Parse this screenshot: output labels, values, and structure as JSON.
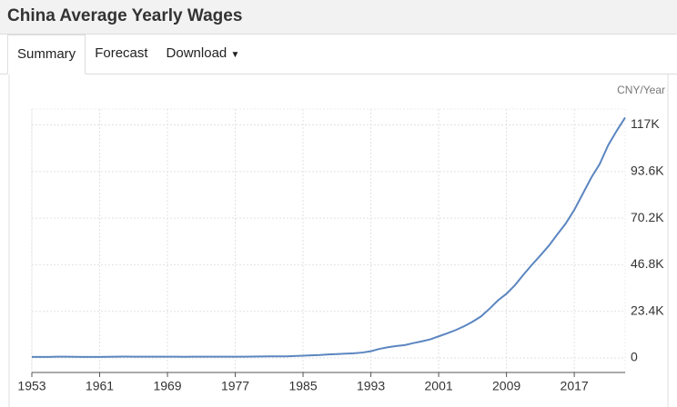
{
  "header": {
    "title": "China Average Yearly Wages"
  },
  "tabs": [
    "Summary",
    "Forecast",
    "Download"
  ],
  "chart_data": {
    "type": "line",
    "y_unit": "CNY/Year",
    "x": [
      1953,
      1954,
      1955,
      1956,
      1957,
      1958,
      1959,
      1960,
      1961,
      1962,
      1963,
      1964,
      1965,
      1966,
      1967,
      1968,
      1969,
      1970,
      1971,
      1972,
      1973,
      1974,
      1975,
      1976,
      1977,
      1978,
      1979,
      1980,
      1981,
      1982,
      1983,
      1984,
      1985,
      1986,
      1987,
      1988,
      1989,
      1990,
      1991,
      1992,
      1993,
      1994,
      1995,
      1996,
      1997,
      1998,
      1999,
      2000,
      2001,
      2002,
      2003,
      2004,
      2005,
      2006,
      2007,
      2008,
      2009,
      2010,
      2011,
      2012,
      2013,
      2014,
      2015,
      2016,
      2017,
      2018,
      2019,
      2020,
      2021,
      2022,
      2023
    ],
    "series": [
      {
        "color": "#5b86c0",
        "values": [
          496,
          519,
          534,
          610,
          637,
          550,
          524,
          528,
          537,
          592,
          641,
          661,
          652,
          636,
          630,
          621,
          618,
          609,
          597,
          622,
          614,
          622,
          613,
          605,
          602,
          615,
          668,
          762,
          772,
          798,
          826,
          974,
          1148,
          1329,
          1459,
          1747,
          1935,
          2140,
          2340,
          2711,
          3371,
          4538,
          5348,
          5980,
          6444,
          7446,
          8319,
          9333,
          10834,
          12373,
          13969,
          15920,
          18200,
          20856,
          24721,
          28898,
          32244,
          36539,
          41799,
          46769,
          51483,
          56360,
          62029,
          67569,
          74318,
          82413,
          90501,
          97379,
          106837,
          114029,
          120698
        ]
      }
    ],
    "xlim": [
      1953,
      2023
    ],
    "xticks": [
      1953,
      1961,
      1969,
      1977,
      1985,
      1993,
      2001,
      2009,
      2017
    ],
    "ylim": [
      -7300,
      125000
    ],
    "yticks": [
      0,
      {
        "value": 23400,
        "label": "23.4K"
      },
      {
        "value": 46800,
        "label": "46.8K"
      },
      {
        "value": 70200,
        "label": "70.2K"
      },
      {
        "value": 93600,
        "label": "93.6K"
      },
      {
        "value": 117000,
        "label": "117K"
      }
    ],
    "grid": true
  }
}
